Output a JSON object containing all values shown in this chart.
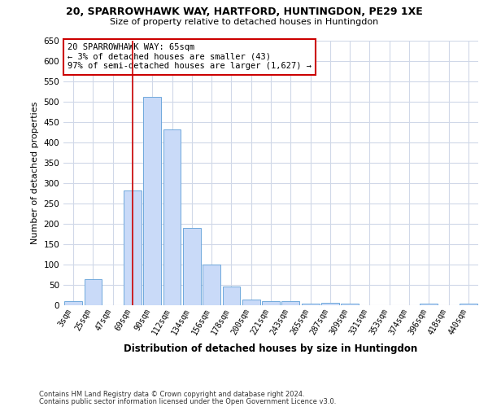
{
  "title1": "20, SPARROWHAWK WAY, HARTFORD, HUNTINGDON, PE29 1XE",
  "title2": "Size of property relative to detached houses in Huntingdon",
  "xlabel": "Distribution of detached houses by size in Huntingdon",
  "ylabel": "Number of detached properties",
  "categories": [
    "3sqm",
    "25sqm",
    "47sqm",
    "69sqm",
    "90sqm",
    "112sqm",
    "134sqm",
    "156sqm",
    "178sqm",
    "200sqm",
    "221sqm",
    "243sqm",
    "265sqm",
    "287sqm",
    "309sqm",
    "331sqm",
    "353sqm",
    "374sqm",
    "396sqm",
    "418sqm",
    "440sqm"
  ],
  "values": [
    10,
    65,
    0,
    283,
    513,
    432,
    191,
    101,
    46,
    15,
    11,
    10,
    4,
    6,
    5,
    0,
    0,
    0,
    4,
    0,
    4
  ],
  "bar_color": "#c9daf8",
  "bar_edge_color": "#6fa8dc",
  "redline_x": 3,
  "annotation_text": "20 SPARROWHAWK WAY: 65sqm\n← 3% of detached houses are smaller (43)\n97% of semi-detached houses are larger (1,627) →",
  "annotation_box_color": "#ffffff",
  "annotation_box_edge": "#cc0000",
  "footnote1": "Contains HM Land Registry data © Crown copyright and database right 2024.",
  "footnote2": "Contains public sector information licensed under the Open Government Licence v3.0.",
  "ylim": [
    0,
    650
  ],
  "yticks": [
    0,
    50,
    100,
    150,
    200,
    250,
    300,
    350,
    400,
    450,
    500,
    550,
    600,
    650
  ],
  "background_color": "#ffffff",
  "grid_color": "#d0d8e8"
}
